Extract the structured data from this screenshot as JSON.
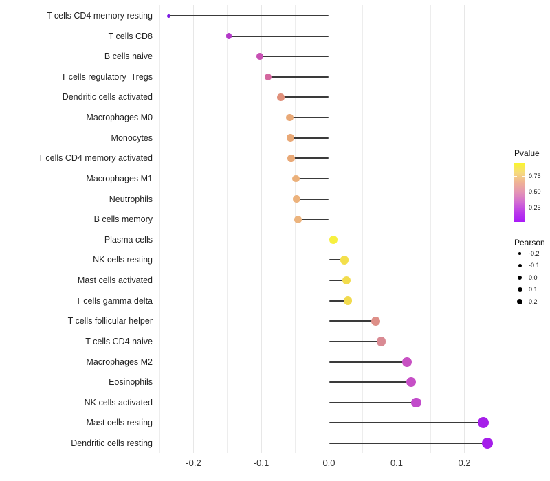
{
  "chart_data": {
    "type": "scatter",
    "subtype": "lollipop",
    "title": "",
    "xlabel": "",
    "ylabel": "",
    "xlim": [
      -0.25,
      0.25
    ],
    "grid_step": 0.05,
    "grid": true,
    "x_tick_labels": [
      "-0.2",
      "-0.1",
      "0.0",
      "0.1",
      "0.2"
    ],
    "x_tick_values": [
      -0.2,
      -0.1,
      0.0,
      0.1,
      0.2
    ],
    "series_name": "Pearson",
    "color_encoding": "Pvalue",
    "size_encoding": "Pearson",
    "points": [
      {
        "label": "T cells CD4 memory resting",
        "pearson": -0.237,
        "color": "#7B1BE2"
      },
      {
        "label": "T cells CD8",
        "pearson": -0.148,
        "color": "#B338C8"
      },
      {
        "label": "B cells naive",
        "pearson": -0.102,
        "color": "#C851B4"
      },
      {
        "label": "T cells regulatory  Tregs",
        "pearson": -0.09,
        "color": "#D4679F"
      },
      {
        "label": "Dendritic cells activated",
        "pearson": -0.071,
        "color": "#E0907B"
      },
      {
        "label": "Macrophages M0",
        "pearson": -0.058,
        "color": "#E9A977"
      },
      {
        "label": "Monocytes",
        "pearson": -0.057,
        "color": "#E9A977"
      },
      {
        "label": "T cells CD4 memory activated",
        "pearson": -0.056,
        "color": "#E9A977"
      },
      {
        "label": "Macrophages M1",
        "pearson": -0.049,
        "color": "#EBB07A"
      },
      {
        "label": "Neutrophils",
        "pearson": -0.048,
        "color": "#ECB27C"
      },
      {
        "label": "B cells memory",
        "pearson": -0.046,
        "color": "#ECB47E"
      },
      {
        "label": "Plasma cells",
        "pearson": 0.007,
        "color": "#F7F03F"
      },
      {
        "label": "NK cells resting",
        "pearson": 0.023,
        "color": "#F3DF4B"
      },
      {
        "label": "Mast cells activated",
        "pearson": 0.026,
        "color": "#F2DC4D"
      },
      {
        "label": "T cells gamma delta",
        "pearson": 0.028,
        "color": "#F1DA4E"
      },
      {
        "label": "T cells follicular helper",
        "pearson": 0.069,
        "color": "#DE8F88"
      },
      {
        "label": "T cells CD4 naive",
        "pearson": 0.077,
        "color": "#D98A93"
      },
      {
        "label": "Macrophages M2",
        "pearson": 0.115,
        "color": "#C851C3"
      },
      {
        "label": "Eosinophils",
        "pearson": 0.121,
        "color": "#C64FC6"
      },
      {
        "label": "NK cells activated",
        "pearson": 0.129,
        "color": "#C24CCB"
      },
      {
        "label": "Mast cells resting",
        "pearson": 0.228,
        "color": "#A61FE9"
      },
      {
        "label": "Dendritic cells resting",
        "pearson": 0.234,
        "color": "#A51EEA"
      }
    ],
    "legends": {
      "pvalue": {
        "title": "Pvalue",
        "tick_labels": [
          "0.75",
          "0.50",
          "0.25"
        ],
        "gradient_stops": [
          "#FAF62B",
          "#F6DA7D",
          "#EFB295",
          "#E494B5",
          "#D26CD2",
          "#BB3BE9",
          "#A91AF7"
        ],
        "orientation": "vertical",
        "high_at_top": true
      },
      "pearson": {
        "title": "Pearson",
        "entries": [
          "-0.2",
          "-0.1",
          "0.0",
          "0.1",
          "0.2"
        ],
        "dot_color": "#000000"
      }
    },
    "legend_position": "right"
  }
}
